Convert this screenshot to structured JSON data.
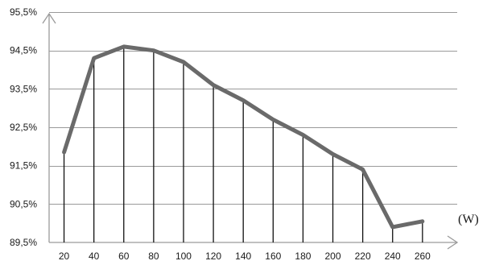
{
  "chart_data": {
    "type": "line",
    "x": [
      20,
      40,
      60,
      80,
      100,
      120,
      140,
      160,
      180,
      200,
      220,
      240,
      260
    ],
    "series": [
      {
        "values": [
          91.85,
          94.3,
          94.6,
          94.5,
          94.2,
          93.6,
          93.2,
          92.7,
          92.3,
          91.8,
          91.4,
          89.9,
          90.05
        ]
      }
    ],
    "y_tick_labels": [
      "89,5%",
      "90,5%",
      "91,5%",
      "92,5%",
      "93,5%",
      "94,5%",
      "95,5%"
    ],
    "y_ticks": [
      89.5,
      90.5,
      91.5,
      92.5,
      93.5,
      94.5,
      95.5
    ],
    "x_tick_labels": [
      "20",
      "40",
      "60",
      "80",
      "100",
      "120",
      "140",
      "160",
      "180",
      "200",
      "220",
      "240",
      "260"
    ],
    "x_unit_label": "(W)",
    "ylim": [
      89.5,
      95.5
    ],
    "xlim": [
      10,
      270
    ],
    "grid": "horizontal",
    "drop_lines": true,
    "line_color": "#6a6a6a",
    "drop_line_color": "#111111",
    "grid_color": "#9a9a9a"
  }
}
